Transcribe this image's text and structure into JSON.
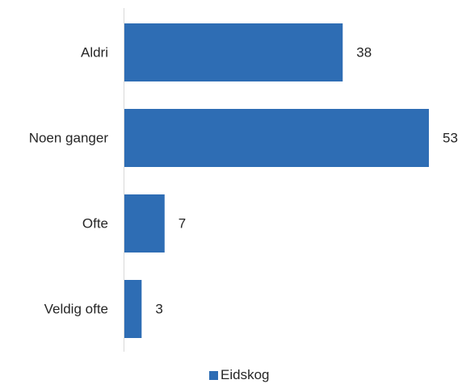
{
  "chart_data": {
    "type": "bar",
    "orientation": "horizontal",
    "categories": [
      "Aldri",
      "Noen ganger",
      "Ofte",
      "Veldig ofte"
    ],
    "series": [
      {
        "name": "Eidskog",
        "values": [
          38,
          53,
          7,
          3
        ],
        "color": "#2e6db4"
      }
    ],
    "data_labels": [
      "38",
      "53",
      "7",
      "3"
    ],
    "xlim": [
      0,
      53
    ],
    "grid": false,
    "legend_position": "bottom"
  }
}
